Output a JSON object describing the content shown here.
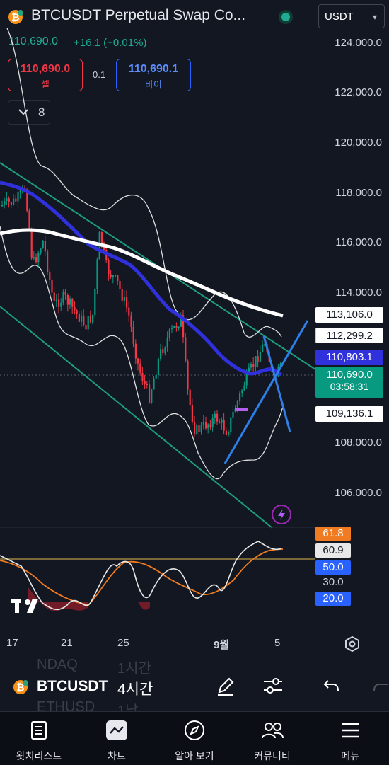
{
  "header": {
    "symbol_title": "BTCUSDT Perpetual Swap Co...",
    "last_price": "110,690.0",
    "change": "+16.1 (+0.01%)",
    "currency": "USDT"
  },
  "trade": {
    "sell_price": "110,690.0",
    "sell_label": "셀",
    "spread": "0.1",
    "buy_price": "110,690.1",
    "buy_label": "바이"
  },
  "indicator_count": "8",
  "price_axis": [
    "124,000.0",
    "122,000.0",
    "120,000.0",
    "118,000.0",
    "116,000.0",
    "114,000.0",
    "108,000.0",
    "106,000.0"
  ],
  "price_tags": {
    "t1": "113,106.0",
    "t2": "112,299.2",
    "t3": "110,803.1",
    "t4_price": "110,690.0",
    "t4_time": "03:58:31",
    "t5": "109,136.1"
  },
  "oscillator_tags": {
    "a": "61.8",
    "b": "60.9",
    "c": "50.0",
    "d": "30.0",
    "e": "20.0"
  },
  "date_axis": [
    "17",
    "21",
    "25",
    "9월",
    "5"
  ],
  "toolbar": {
    "symbol": "BTCUSDT",
    "interval": "4시간",
    "ghost_symbol_top": "NDAQ",
    "ghost_interval_top": "1시간",
    "ghost_symbol_bottom": "ETHUSD",
    "ghost_interval_bottom": "1날"
  },
  "tabs": [
    "왓치리스트",
    "차트",
    "알아 보기",
    "커뮤니티",
    "메뉴"
  ],
  "colors": {
    "bg": "#131722",
    "up": "#22ab94",
    "down": "#f23645",
    "blue_ma": "#3636e0",
    "trend": "#1e9e80"
  }
}
